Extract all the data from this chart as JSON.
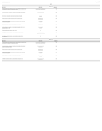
{
  "background_color": "#ffffff",
  "text_color": "#000000",
  "page_header_left": "US 2019/0284241 A1",
  "page_header_right": "Sep. 1, 2019",
  "page_number": "17",
  "table1_title": "TABLE 13",
  "table2_title": "TABLE 14",
  "figsize": [
    1.28,
    1.65
  ],
  "dpi": 100
}
